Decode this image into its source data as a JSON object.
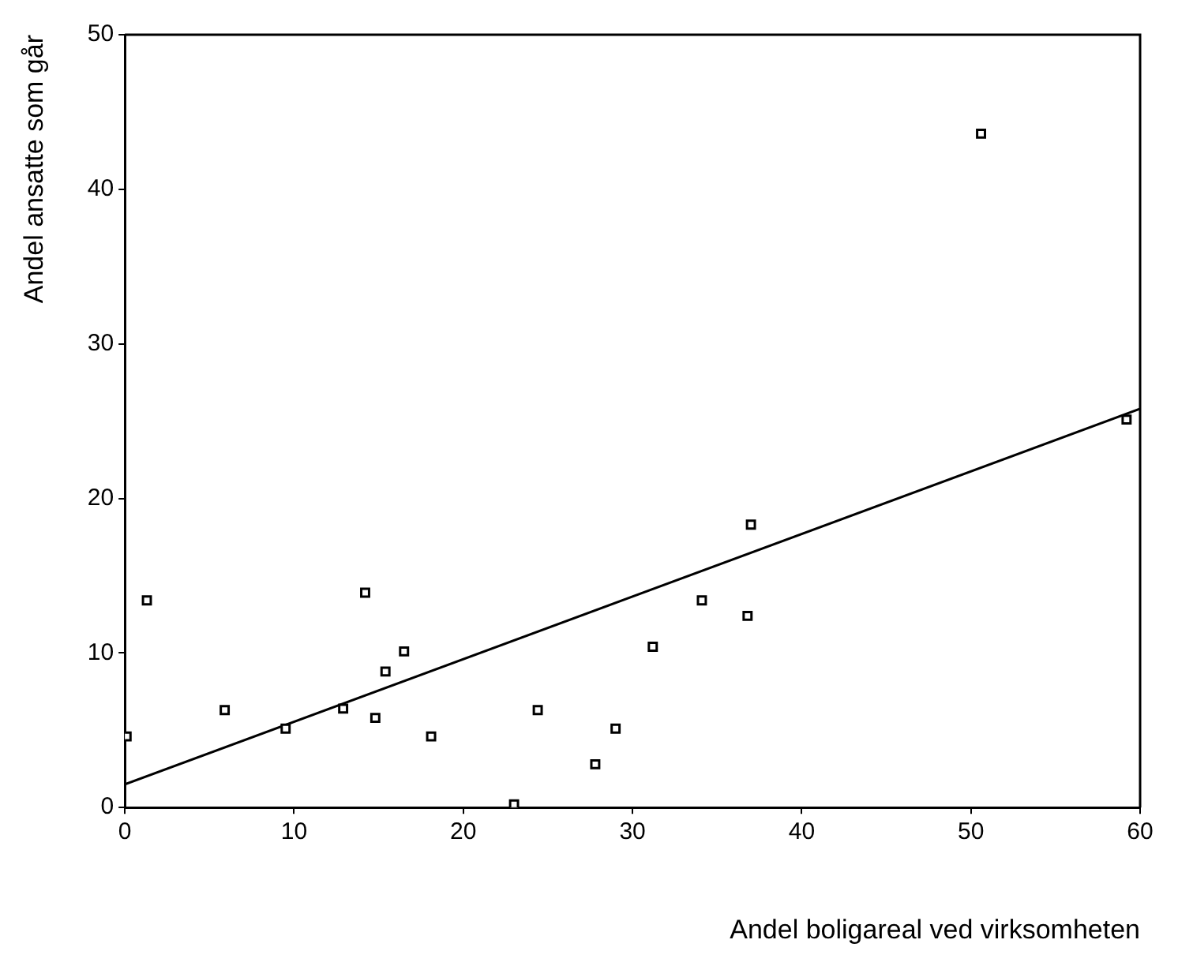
{
  "chart_data": {
    "type": "scatter",
    "xlabel": "Andel boligareal ved virksomheten",
    "ylabel": "Andel ansatte som går",
    "xlim": [
      0,
      60
    ],
    "xticks": [
      0,
      10,
      20,
      30,
      40,
      50,
      60
    ],
    "ylim": [
      0,
      50
    ],
    "yticks": [
      0,
      10,
      20,
      30,
      40,
      50
    ],
    "grid": false,
    "legend": false,
    "marker": "square",
    "series": [
      {
        "color": "#000000",
        "x": [
          0.1,
          1.3,
          5.9,
          9.5,
          12.9,
          14.2,
          14.8,
          15.4,
          16.5,
          18.1,
          23.0,
          24.4,
          27.8,
          29.0,
          31.2,
          34.1,
          36.8,
          37.0,
          50.6,
          59.2
        ],
        "values": [
          4.6,
          13.4,
          6.3,
          5.1,
          6.4,
          13.9,
          5.8,
          8.8,
          10.1,
          4.6,
          0.2,
          6.3,
          2.8,
          5.1,
          10.4,
          13.4,
          12.4,
          18.3,
          43.6,
          25.1
        ]
      },
      {
        "type": "line",
        "color": "#000000",
        "x": [
          0,
          60
        ],
        "values": [
          1.5,
          25.8
        ],
        "marker": "none"
      }
    ]
  }
}
